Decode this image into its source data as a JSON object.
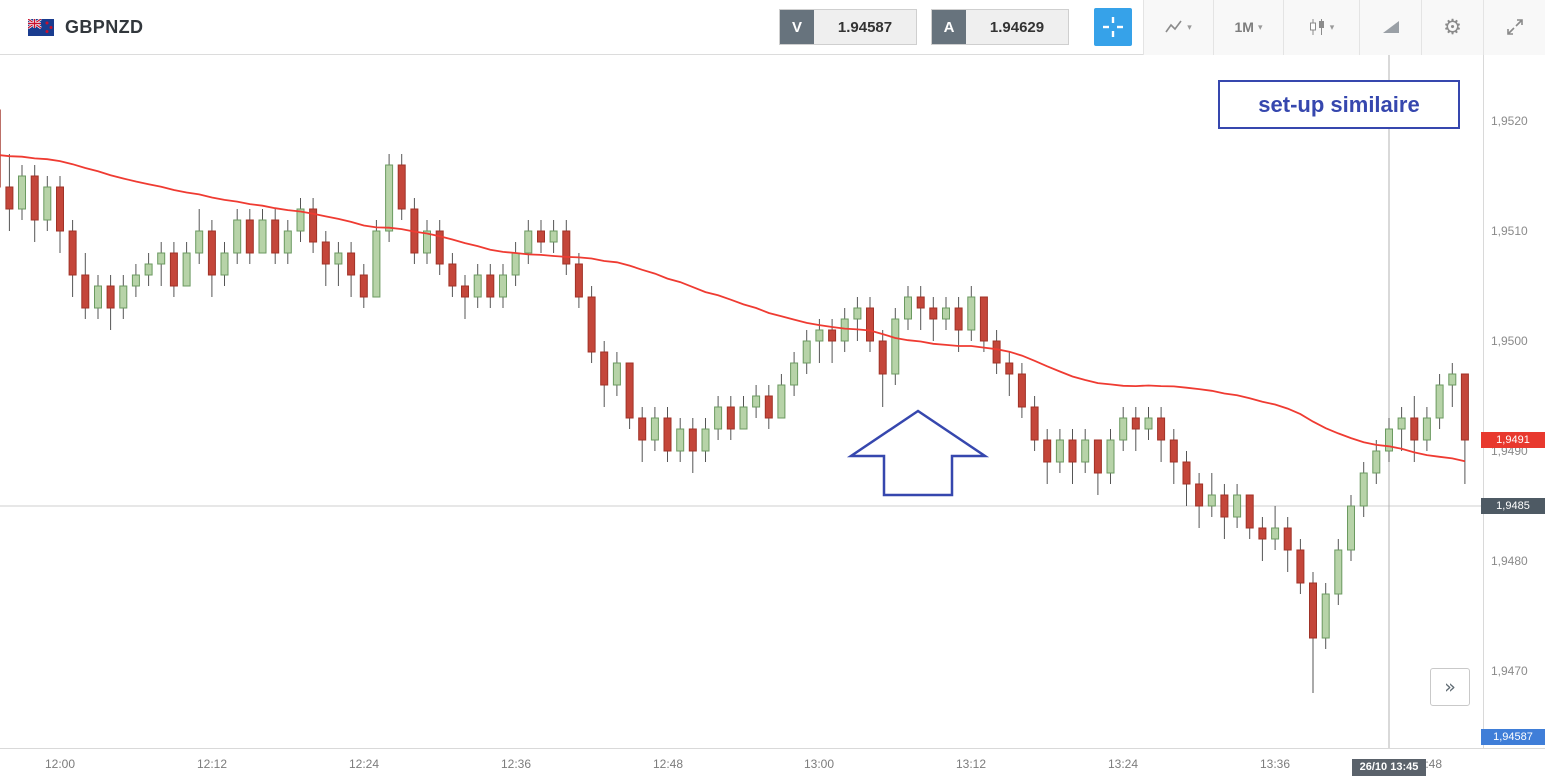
{
  "header": {
    "symbol": "GBPNZD",
    "sell_label": "V",
    "sell_price": "1.94587",
    "buy_label": "A",
    "buy_price": "1.94629",
    "interval_label": "1M"
  },
  "icons": {
    "caret": "▾",
    "gear": "⚙",
    "chevrons_right": "»"
  },
  "annotations": {
    "setup_box": "set-up similaire"
  },
  "badges": {
    "last_price": "1,9491",
    "level_price": "1,9485",
    "sell_marker": "1,94587",
    "time_crosshair": "26/10 13:45"
  },
  "chart_data": {
    "type": "candlestick",
    "title": "GBPNZD 1-minute candlestick chart",
    "interval": "1M",
    "date": "26/10",
    "start_time": "11:55",
    "ylim": [
      1.9463,
      1.9526
    ],
    "y_ticks": [
      {
        "value": 1.952,
        "label": "1,9520"
      },
      {
        "value": 1.951,
        "label": "1,9510"
      },
      {
        "value": 1.95,
        "label": "1,9500"
      },
      {
        "value": 1.949,
        "label": "1,9490"
      },
      {
        "value": 1.948,
        "label": "1,9480"
      },
      {
        "value": 1.947,
        "label": "1,9470"
      }
    ],
    "x_ticks": [
      "12:00",
      "12:12",
      "12:24",
      "12:36",
      "12:48",
      "13:00",
      "13:12",
      "13:24",
      "13:36",
      "13:48"
    ],
    "level_line": 1.9485,
    "crosshair_time": "13:45",
    "last_price": 1.9491,
    "ma": {
      "name": "Moving Average",
      "period": 40,
      "seed": 1.9517,
      "color": "#ef3b32"
    },
    "colors": {
      "up_fill": "#b7d3a8",
      "up_stroke": "#6b9a60",
      "down_fill": "#c4463a",
      "down_stroke": "#a03227",
      "wick": "#555555"
    },
    "candles": [
      [
        1.9521,
        1.9523,
        1.9512,
        1.9514
      ],
      [
        1.9514,
        1.9517,
        1.951,
        1.9512
      ],
      [
        1.9512,
        1.9516,
        1.9511,
        1.9515
      ],
      [
        1.9515,
        1.9516,
        1.9509,
        1.9511
      ],
      [
        1.9511,
        1.9515,
        1.951,
        1.9514
      ],
      [
        1.9514,
        1.9515,
        1.9508,
        1.951
      ],
      [
        1.951,
        1.9511,
        1.9504,
        1.9506
      ],
      [
        1.9506,
        1.9508,
        1.9502,
        1.9503
      ],
      [
        1.9503,
        1.9506,
        1.9502,
        1.9505
      ],
      [
        1.9505,
        1.9506,
        1.9501,
        1.9503
      ],
      [
        1.9503,
        1.9506,
        1.9502,
        1.9505
      ],
      [
        1.9505,
        1.9507,
        1.9504,
        1.9506
      ],
      [
        1.9506,
        1.9508,
        1.9505,
        1.9507
      ],
      [
        1.9507,
        1.9509,
        1.9505,
        1.9508
      ],
      [
        1.9508,
        1.9509,
        1.9504,
        1.9505
      ],
      [
        1.9505,
        1.9509,
        1.9505,
        1.9508
      ],
      [
        1.9508,
        1.9512,
        1.9507,
        1.951
      ],
      [
        1.951,
        1.9511,
        1.9504,
        1.9506
      ],
      [
        1.9506,
        1.9509,
        1.9505,
        1.9508
      ],
      [
        1.9508,
        1.9512,
        1.9507,
        1.9511
      ],
      [
        1.9511,
        1.9512,
        1.9507,
        1.9508
      ],
      [
        1.9508,
        1.9512,
        1.9508,
        1.9511
      ],
      [
        1.9511,
        1.9512,
        1.9507,
        1.9508
      ],
      [
        1.9508,
        1.9511,
        1.9507,
        1.951
      ],
      [
        1.951,
        1.9513,
        1.9509,
        1.9512
      ],
      [
        1.9512,
        1.9513,
        1.9508,
        1.9509
      ],
      [
        1.9509,
        1.951,
        1.9505,
        1.9507
      ],
      [
        1.9507,
        1.9509,
        1.9505,
        1.9508
      ],
      [
        1.9508,
        1.9509,
        1.9504,
        1.9506
      ],
      [
        1.9506,
        1.9507,
        1.9503,
        1.9504
      ],
      [
        1.9504,
        1.9511,
        1.9504,
        1.951
      ],
      [
        1.951,
        1.9517,
        1.9509,
        1.9516
      ],
      [
        1.9516,
        1.9517,
        1.9511,
        1.9512
      ],
      [
        1.9512,
        1.9513,
        1.9507,
        1.9508
      ],
      [
        1.9508,
        1.9511,
        1.9507,
        1.951
      ],
      [
        1.951,
        1.9511,
        1.9506,
        1.9507
      ],
      [
        1.9507,
        1.9508,
        1.9504,
        1.9505
      ],
      [
        1.9505,
        1.9506,
        1.9502,
        1.9504
      ],
      [
        1.9504,
        1.9507,
        1.9503,
        1.9506
      ],
      [
        1.9506,
        1.9507,
        1.9503,
        1.9504
      ],
      [
        1.9504,
        1.9507,
        1.9503,
        1.9506
      ],
      [
        1.9506,
        1.9509,
        1.9505,
        1.9508
      ],
      [
        1.9508,
        1.9511,
        1.9507,
        1.951
      ],
      [
        1.951,
        1.9511,
        1.9508,
        1.9509
      ],
      [
        1.9509,
        1.9511,
        1.9508,
        1.951
      ],
      [
        1.951,
        1.9511,
        1.9506,
        1.9507
      ],
      [
        1.9507,
        1.9508,
        1.9503,
        1.9504
      ],
      [
        1.9504,
        1.9505,
        1.9498,
        1.9499
      ],
      [
        1.9499,
        1.95,
        1.9494,
        1.9496
      ],
      [
        1.9496,
        1.9499,
        1.9495,
        1.9498
      ],
      [
        1.9498,
        1.9498,
        1.9492,
        1.9493
      ],
      [
        1.9493,
        1.9494,
        1.9489,
        1.9491
      ],
      [
        1.9491,
        1.9494,
        1.949,
        1.9493
      ],
      [
        1.9493,
        1.9494,
        1.9489,
        1.949
      ],
      [
        1.949,
        1.9493,
        1.9489,
        1.9492
      ],
      [
        1.9492,
        1.9493,
        1.9488,
        1.949
      ],
      [
        1.949,
        1.9493,
        1.9489,
        1.9492
      ],
      [
        1.9492,
        1.9495,
        1.9491,
        1.9494
      ],
      [
        1.9494,
        1.9495,
        1.9491,
        1.9492
      ],
      [
        1.9492,
        1.9495,
        1.9492,
        1.9494
      ],
      [
        1.9494,
        1.9496,
        1.9493,
        1.9495
      ],
      [
        1.9495,
        1.9496,
        1.9492,
        1.9493
      ],
      [
        1.9493,
        1.9497,
        1.9493,
        1.9496
      ],
      [
        1.9496,
        1.9499,
        1.9495,
        1.9498
      ],
      [
        1.9498,
        1.9501,
        1.9497,
        1.95
      ],
      [
        1.95,
        1.9502,
        1.9498,
        1.9501
      ],
      [
        1.9501,
        1.9502,
        1.9498,
        1.95
      ],
      [
        1.95,
        1.9503,
        1.9499,
        1.9502
      ],
      [
        1.9502,
        1.9504,
        1.95,
        1.9503
      ],
      [
        1.9503,
        1.9504,
        1.9499,
        1.95
      ],
      [
        1.95,
        1.9501,
        1.9494,
        1.9497
      ],
      [
        1.9497,
        1.9503,
        1.9496,
        1.9502
      ],
      [
        1.9502,
        1.9505,
        1.9501,
        1.9504
      ],
      [
        1.9504,
        1.9505,
        1.9501,
        1.9503
      ],
      [
        1.9503,
        1.9504,
        1.95,
        1.9502
      ],
      [
        1.9502,
        1.9504,
        1.9501,
        1.9503
      ],
      [
        1.9503,
        1.9504,
        1.9499,
        1.9501
      ],
      [
        1.9501,
        1.9505,
        1.95,
        1.9504
      ],
      [
        1.9504,
        1.9504,
        1.9499,
        1.95
      ],
      [
        1.95,
        1.9501,
        1.9497,
        1.9498
      ],
      [
        1.9498,
        1.9499,
        1.9495,
        1.9497
      ],
      [
        1.9497,
        1.9498,
        1.9493,
        1.9494
      ],
      [
        1.9494,
        1.9495,
        1.949,
        1.9491
      ],
      [
        1.9491,
        1.9492,
        1.9487,
        1.9489
      ],
      [
        1.9489,
        1.9492,
        1.9488,
        1.9491
      ],
      [
        1.9491,
        1.9492,
        1.9487,
        1.9489
      ],
      [
        1.9489,
        1.9492,
        1.9488,
        1.9491
      ],
      [
        1.9491,
        1.9491,
        1.9486,
        1.9488
      ],
      [
        1.9488,
        1.9492,
        1.9487,
        1.9491
      ],
      [
        1.9491,
        1.9494,
        1.949,
        1.9493
      ],
      [
        1.9493,
        1.9494,
        1.949,
        1.9492
      ],
      [
        1.9492,
        1.9494,
        1.9491,
        1.9493
      ],
      [
        1.9493,
        1.9494,
        1.9489,
        1.9491
      ],
      [
        1.9491,
        1.9492,
        1.9487,
        1.9489
      ],
      [
        1.9489,
        1.949,
        1.9485,
        1.9487
      ],
      [
        1.9487,
        1.9488,
        1.9483,
        1.9485
      ],
      [
        1.9485,
        1.9488,
        1.9484,
        1.9486
      ],
      [
        1.9486,
        1.9487,
        1.9482,
        1.9484
      ],
      [
        1.9484,
        1.9487,
        1.9483,
        1.9486
      ],
      [
        1.9486,
        1.9486,
        1.9482,
        1.9483
      ],
      [
        1.9483,
        1.9484,
        1.948,
        1.9482
      ],
      [
        1.9482,
        1.9485,
        1.9481,
        1.9483
      ],
      [
        1.9483,
        1.9484,
        1.9479,
        1.9481
      ],
      [
        1.9481,
        1.9482,
        1.9477,
        1.9478
      ],
      [
        1.9478,
        1.9479,
        1.9468,
        1.9473
      ],
      [
        1.9473,
        1.9478,
        1.9472,
        1.9477
      ],
      [
        1.9477,
        1.9482,
        1.9476,
        1.9481
      ],
      [
        1.9481,
        1.9486,
        1.948,
        1.9485
      ],
      [
        1.9485,
        1.9489,
        1.9484,
        1.9488
      ],
      [
        1.9488,
        1.9491,
        1.9487,
        1.949
      ],
      [
        1.949,
        1.9493,
        1.9489,
        1.9492
      ],
      [
        1.9492,
        1.9494,
        1.949,
        1.9493
      ],
      [
        1.9493,
        1.9495,
        1.9489,
        1.9491
      ],
      [
        1.9491,
        1.9494,
        1.949,
        1.9493
      ],
      [
        1.9493,
        1.9497,
        1.9492,
        1.9496
      ],
      [
        1.9496,
        1.9498,
        1.9494,
        1.9497
      ],
      [
        1.9497,
        1.9497,
        1.9487,
        1.9491
      ]
    ]
  }
}
